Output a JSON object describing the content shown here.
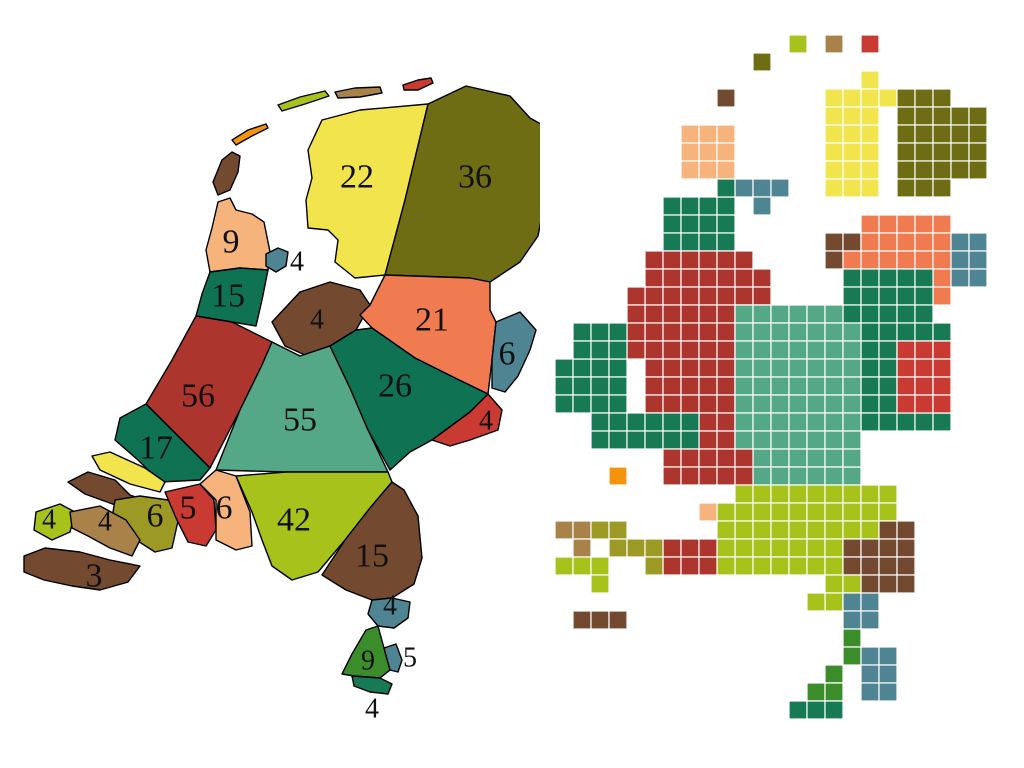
{
  "colors": {
    "groningen": "#6e6d14",
    "friesland": "#f1e44c",
    "drenthe": "#f07b50",
    "overijssel": "#0f7253",
    "gelderland": "#55a887",
    "flevoland": "#73492f",
    "utrecht": "#a6ba1c",
    "noord_holland": "#ac352e",
    "zuid_holland": "#c83a32",
    "zeeland_olive": "#9c9a24",
    "noord_brabant": "#73492f",
    "limburg": "#3b8d2c",
    "teal": "#4f8593",
    "peach": "#f6b47c",
    "brown_light": "#a9824a",
    "orange": "#f5930c",
    "lime": "#a8c21c",
    "dark_green": "#187a55",
    "white": "#ffffff"
  },
  "geographic_map": {
    "labels": [
      "22",
      "36",
      "9",
      "4",
      "15",
      "4",
      "21",
      "6",
      "56",
      "55",
      "26",
      "4",
      "17",
      "4",
      "4",
      "6",
      "5",
      "6",
      "42",
      "3",
      "15",
      "4",
      "9",
      "5",
      "4"
    ]
  },
  "grid_map": {
    "cell_rows": 26
  }
}
